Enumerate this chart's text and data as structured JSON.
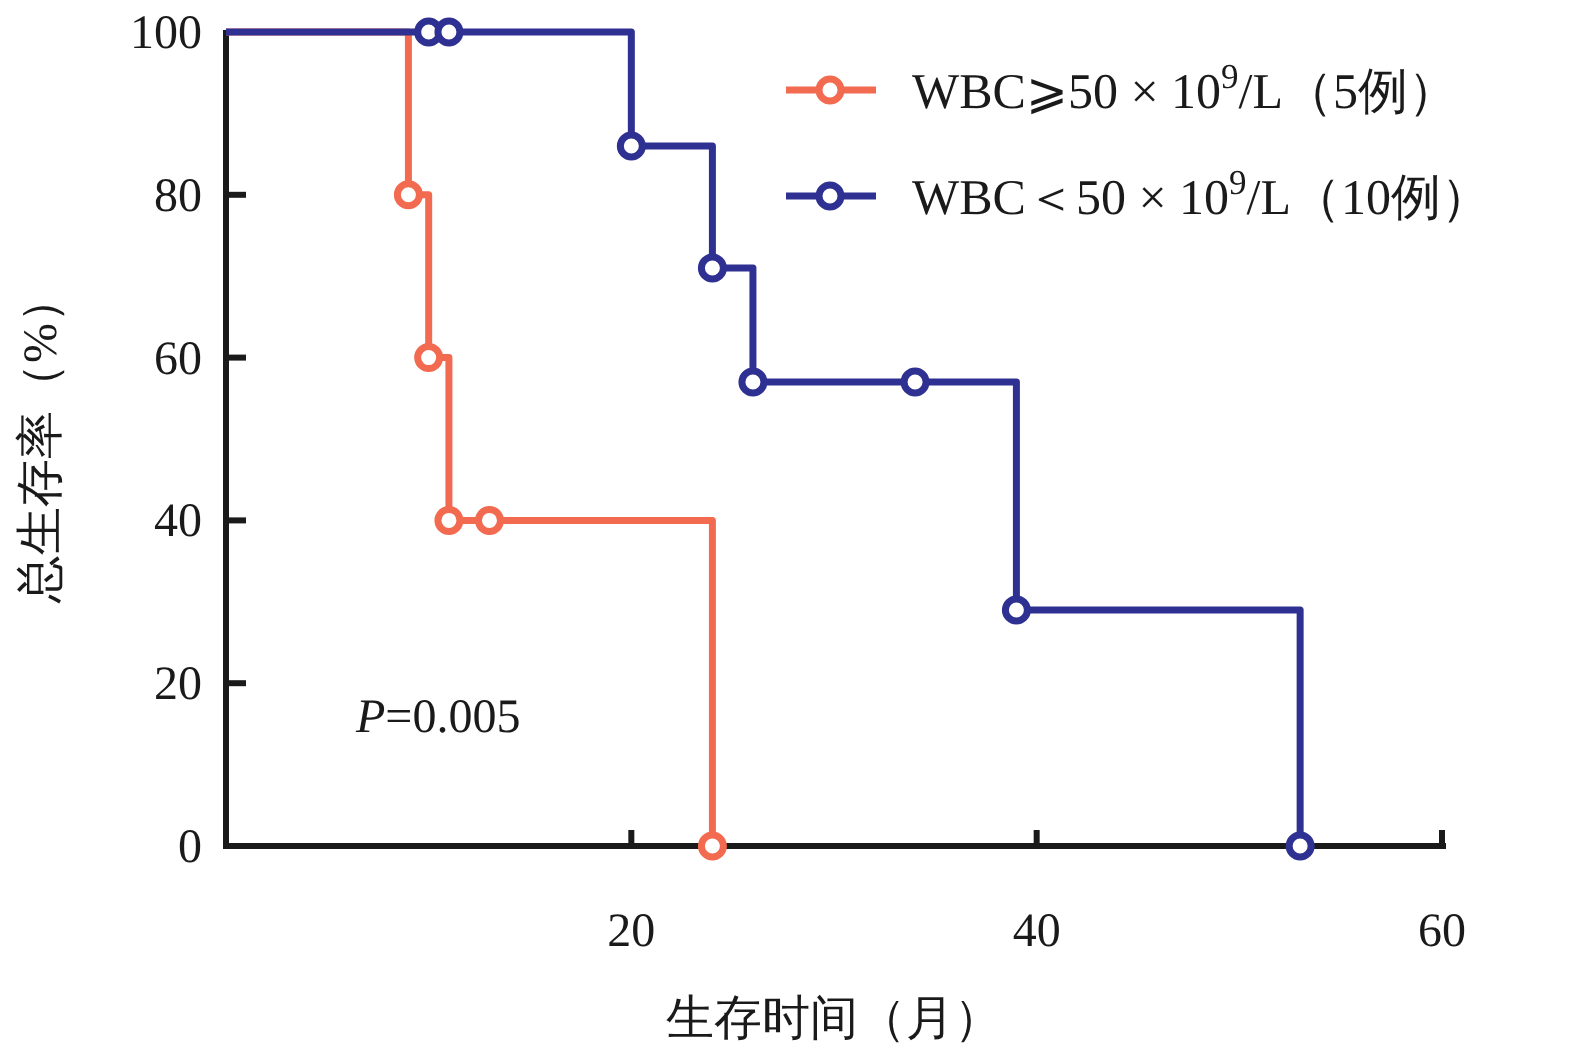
{
  "chart_data": {
    "type": "step",
    "xlabel": "生存时间（月）",
    "ylabel": "总生存率（%）",
    "xlim": [
      0,
      60
    ],
    "xticks": [
      20,
      40,
      60
    ],
    "ylim": [
      0,
      100
    ],
    "yticks": [
      0,
      20,
      40,
      60,
      80,
      100
    ],
    "marker": "circle",
    "legend": "top right",
    "grid": false,
    "annotations": [
      "*P*=0.005"
    ],
    "series": [
      {
        "name": "WBC⩾50 × 10$^{9}$/L（5例）",
        "color": "#f26b50",
        "x": [
          0,
          9,
          10,
          11,
          13,
          24
        ],
        "values": [
          100,
          80,
          60,
          40,
          40,
          0
        ]
      },
      {
        "name": "WBC＜50 × 10$^{9}$/L（10例）",
        "color": "#2e3192",
        "x": [
          0,
          10,
          11,
          20,
          24,
          26,
          34,
          39,
          53
        ],
        "values": [
          100,
          100,
          100,
          86,
          71,
          57,
          57,
          29,
          0
        ]
      }
    ]
  }
}
